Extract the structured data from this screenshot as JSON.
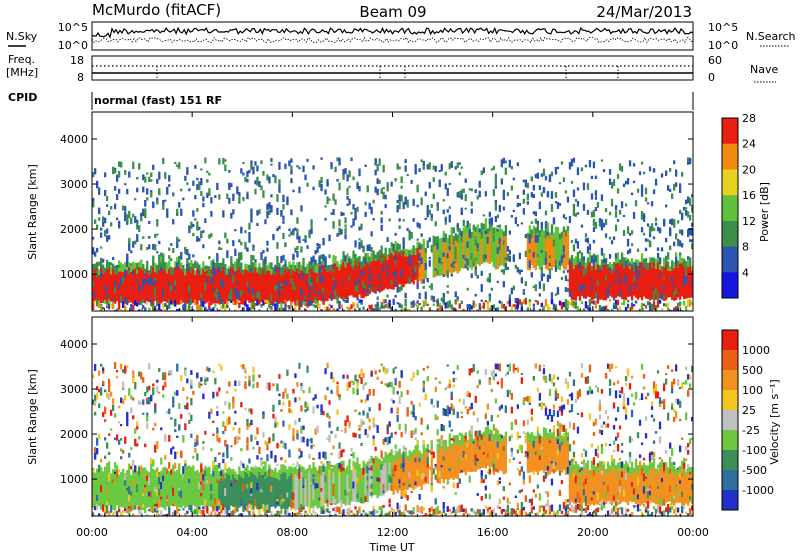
{
  "header": {
    "station": "McMurdo (fitACF)",
    "beam": "Beam 09",
    "date": "24/Mar/2013"
  },
  "noise_panel": {
    "left_label": "N.Sky",
    "right_label": "N.Search",
    "left_ticks": [
      "10^5",
      "10^0"
    ],
    "right_ticks": [
      "10^5",
      "10^0"
    ]
  },
  "freq_panel": {
    "left_label_line1": "Freq.",
    "left_label_line2": "[MHz]",
    "left_ticks": [
      "18",
      "8"
    ],
    "right_label": "Nave",
    "right_ticks": [
      "60",
      "0"
    ]
  },
  "cpid_panel": {
    "label": "CPID",
    "value": "normal (fast) 151 RF"
  },
  "x_axis": {
    "label": "Time UT",
    "ticks": [
      "00:00",
      "04:00",
      "08:00",
      "12:00",
      "16:00",
      "20:00",
      "00:00"
    ]
  },
  "chart_data": [
    {
      "type": "heatmap",
      "panel": "power",
      "ylabel": "Slant Range [km]",
      "yticks": [
        1000,
        2000,
        3000,
        4000
      ],
      "ylim": [
        180,
        4600
      ],
      "xlim_hours": [
        0,
        24
      ],
      "colorbar_label": "Power [dB]",
      "colorbar_ticks": [
        "4",
        "8",
        "12",
        "16",
        "20",
        "24",
        "28"
      ],
      "colorbar_colors": [
        "#1515e0",
        "#2a55b0",
        "#3b8f4a",
        "#5fc33a",
        "#e8d21e",
        "#f58a10",
        "#e81e10"
      ]
    },
    {
      "type": "heatmap",
      "panel": "velocity",
      "ylabel": "Slant Range [km]",
      "yticks": [
        1000,
        2000,
        3000,
        4000
      ],
      "ylim": [
        180,
        4600
      ],
      "xlim_hours": [
        0,
        24
      ],
      "colorbar_label": "Velocity [m s⁻¹]",
      "colorbar_ticks": [
        "1000",
        "500",
        "100",
        "25",
        "-25",
        "-100",
        "-500",
        "-1000"
      ],
      "colorbar_colors": [
        "#2030c8",
        "#2f6fa0",
        "#3d8f5a",
        "#6cc840",
        "#c0c0c0",
        "#f2c820",
        "#f29020",
        "#e86010",
        "#e81e10"
      ]
    }
  ]
}
